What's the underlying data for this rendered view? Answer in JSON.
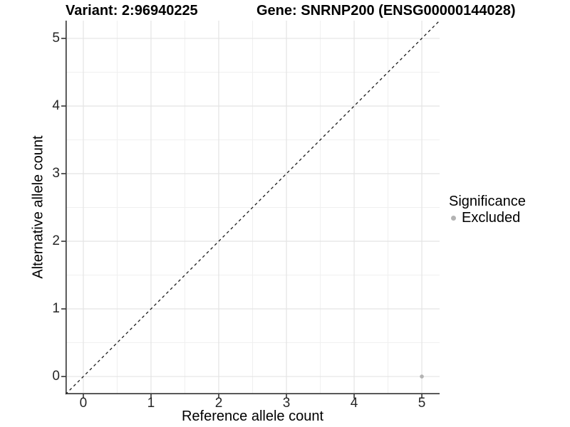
{
  "chart_data": {
    "type": "scatter",
    "titles": {
      "left": "Variant: 2:96940225",
      "right": "Gene: SNRNP200 (ENSG00000144028)"
    },
    "xlabel": "Reference allele count",
    "ylabel": "Alternative allele count",
    "xlim": [
      -0.2625,
      5.2625
    ],
    "ylim": [
      -0.2625,
      5.2625
    ],
    "xticks": [
      0,
      1,
      2,
      3,
      4,
      5
    ],
    "yticks": [
      0,
      1,
      2,
      3,
      4,
      5
    ],
    "grid": {
      "show": true,
      "minor_step": 0.5,
      "major_color": "#e4e4e4",
      "minor_color": "#f0f0f0"
    },
    "axis": {
      "line_color": "#333333",
      "tick_color": "#333333"
    },
    "reference_line": {
      "type": "identity",
      "style": "dashed",
      "color": "#1a1a1a",
      "from": [
        -0.2625,
        -0.2625
      ],
      "to": [
        5.2625,
        5.2625
      ]
    },
    "series": [
      {
        "name": "Excluded",
        "color": "#b3b3b3",
        "marker": "circle",
        "points": [
          [
            5,
            0
          ]
        ]
      }
    ],
    "legend": {
      "title": "Significance",
      "position": "right",
      "items": [
        {
          "label": "Excluded",
          "color": "#b3b3b3",
          "marker": "circle"
        }
      ]
    }
  }
}
